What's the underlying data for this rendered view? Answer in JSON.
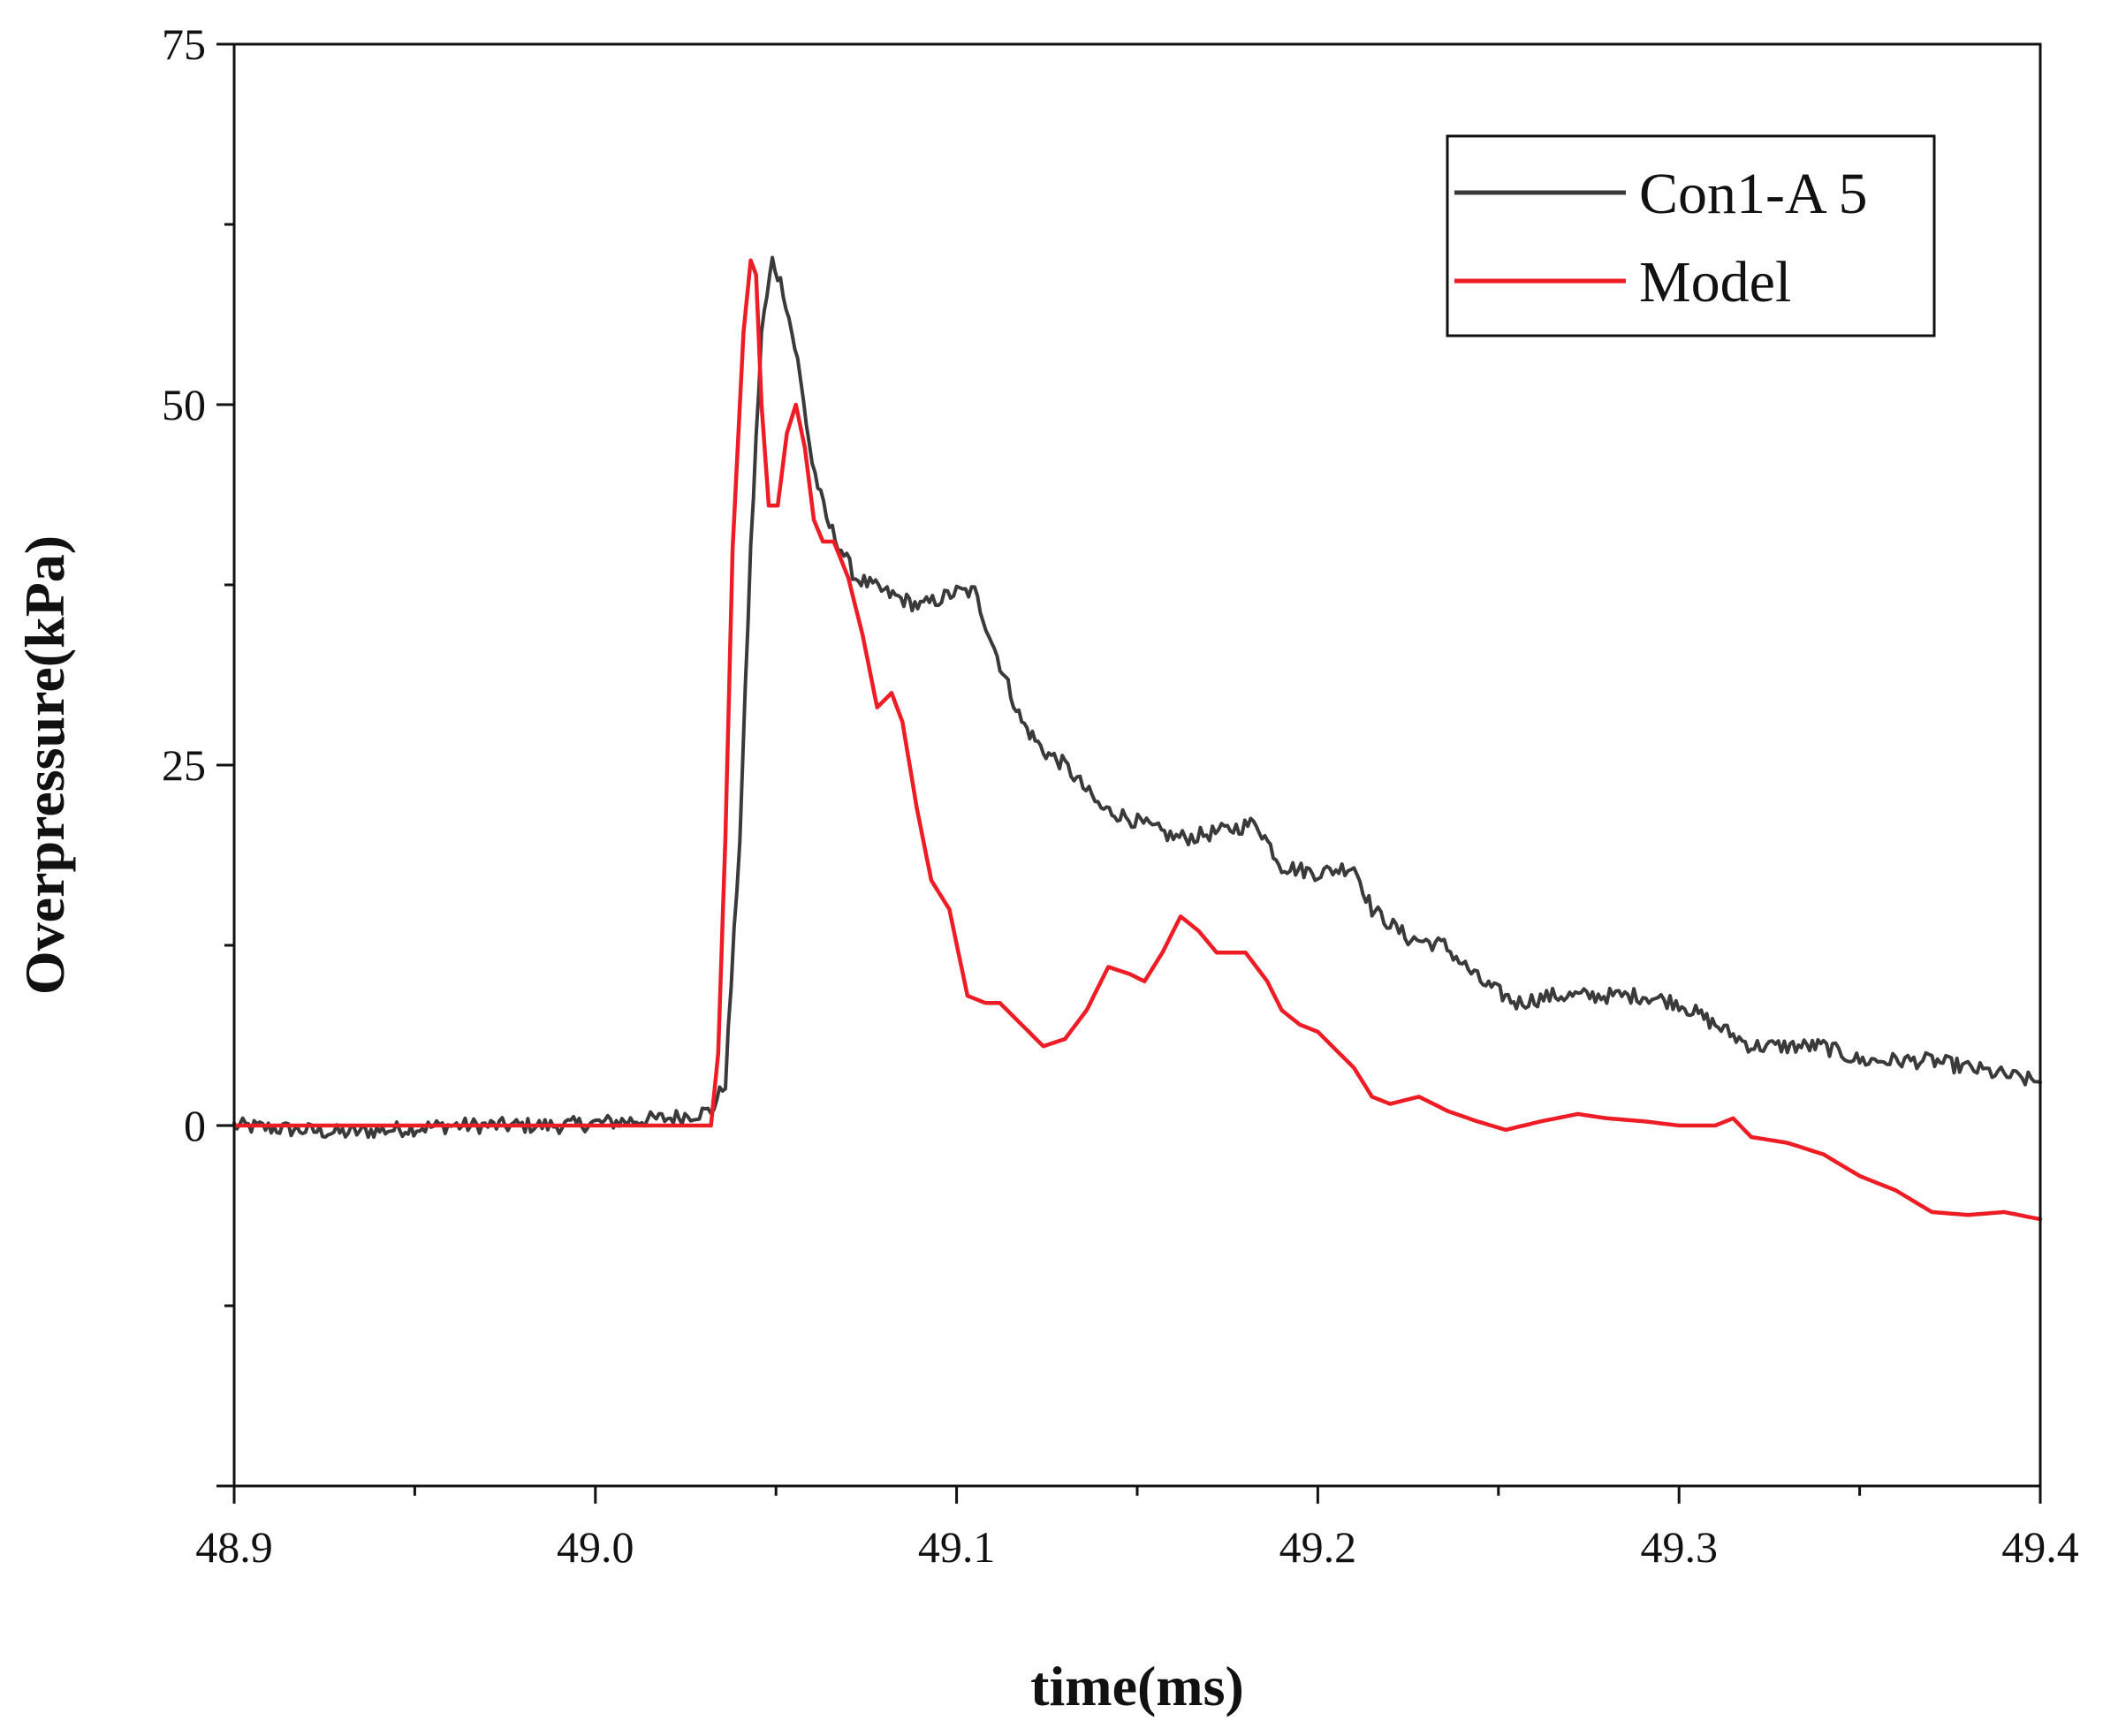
{
  "chart_data": {
    "type": "line",
    "title": "",
    "xlabel": "time(ms)",
    "ylabel": "Overpressure(kPa)",
    "xlim": [
      48.9,
      49.4
    ],
    "ylim": [
      -25,
      75
    ],
    "xticks": [
      48.9,
      49.0,
      49.1,
      49.2,
      49.3,
      49.4
    ],
    "xtick_labels": [
      "48.9",
      "49.0",
      "49.1",
      "49.2",
      "49.3",
      "49.4"
    ],
    "yticks": [
      0,
      25,
      50,
      75
    ],
    "ytick_labels": [
      "0",
      "25",
      "50",
      "75"
    ],
    "legend_position": "top-right",
    "grid": false,
    "series": [
      {
        "name": "Con1-A 5",
        "color": "#3a3a3a",
        "noisy": true,
        "x": [
          48.9,
          48.93,
          48.96,
          48.99,
          49.02,
          49.032,
          49.036,
          49.04,
          49.043,
          49.046,
          49.049,
          49.052,
          49.056,
          49.06,
          49.064,
          49.068,
          49.072,
          49.08,
          49.09,
          49.1,
          49.105,
          49.112,
          49.118,
          49.124,
          49.13,
          49.14,
          49.146,
          49.16,
          49.165,
          49.175,
          49.183,
          49.19,
          49.2,
          49.21,
          49.215,
          49.225,
          49.235,
          49.245,
          49.255,
          49.265,
          49.28,
          49.29,
          49.3,
          49.31,
          49.32,
          49.33,
          49.34,
          49.35,
          49.36,
          49.37,
          49.38,
          49.39,
          49.4
        ],
        "y": [
          0,
          -0.5,
          0,
          0,
          0.5,
          1,
          3,
          20,
          40,
          55,
          60,
          58,
          53,
          46,
          42,
          40,
          38,
          37,
          36,
          37,
          37,
          32,
          28,
          26,
          25,
          22,
          21.5,
          20,
          20,
          20.5,
          21,
          18,
          17.5,
          18,
          15,
          13,
          12.5,
          10,
          8.5,
          9,
          9,
          9,
          8.5,
          7,
          5.5,
          5.5,
          5.5,
          4.5,
          4.5,
          4.5,
          4,
          3.5,
          3
        ]
      },
      {
        "name": "Model",
        "color": "#ee1c25",
        "noisy": false,
        "x": [
          48.9,
          49.0,
          49.032,
          49.034,
          49.036,
          49.038,
          49.041,
          49.043,
          49.0445,
          49.046,
          49.048,
          49.0505,
          49.053,
          49.0555,
          49.058,
          49.0605,
          49.063,
          49.066,
          49.07,
          49.074,
          49.078,
          49.082,
          49.085,
          49.089,
          49.093,
          49.098,
          49.103,
          49.108,
          49.112,
          49.118,
          49.124,
          49.13,
          49.136,
          49.142,
          49.148,
          49.152,
          49.157,
          49.162,
          49.167,
          49.172,
          49.176,
          49.18,
          49.186,
          49.19,
          49.195,
          49.2,
          49.21,
          49.215,
          49.22,
          49.228,
          49.236,
          49.244,
          49.252,
          49.262,
          49.272,
          49.28,
          49.29,
          49.3,
          49.31,
          49.315,
          49.32,
          49.33,
          49.34,
          49.35,
          49.36,
          49.37,
          49.38,
          49.39,
          49.4
        ],
        "y": [
          0,
          0,
          0,
          5,
          20,
          40,
          55,
          60,
          59,
          50,
          43,
          43,
          48,
          50,
          47,
          42,
          40.5,
          40.5,
          38,
          34,
          29,
          30,
          28,
          22,
          17,
          15,
          9,
          8.5,
          8.5,
          7,
          5.5,
          6,
          8,
          11,
          10.5,
          10,
          12,
          14.5,
          13.5,
          12,
          12,
          12,
          10,
          8,
          7,
          6.5,
          4,
          2,
          1.5,
          2,
          1,
          0.3,
          -0.3,
          0.3,
          0.8,
          0.5,
          0.3,
          0,
          0,
          0.5,
          -0.8,
          -1.2,
          -2,
          -3.5,
          -4.5,
          -6,
          -6.2,
          -6,
          -6.5
        ]
      }
    ]
  }
}
